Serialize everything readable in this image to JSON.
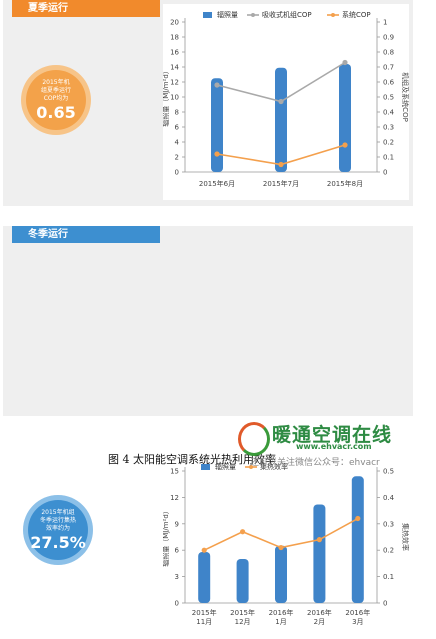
{
  "summer": {
    "tab": "夏季运行",
    "badge_lines": [
      "2015年机",
      "组夏季运行",
      "COP均为"
    ],
    "badge_value": "0.65"
  },
  "winter": {
    "tab": "冬季运行",
    "badge_lines": [
      "2015年机组",
      "冬季运行集热",
      "效率约为"
    ],
    "badge_value": "27.5%"
  },
  "caption": "图 4  太阳能空调系统光热利用效率",
  "watermark": {
    "name": "暖通空调在线",
    "url": "www.ehvacr.com",
    "sub": "还可以关注微信公众号：ehvacr"
  },
  "colors": {
    "bar": "#3f84c9",
    "gray_line": "#a9a9a9",
    "orange_line": "#f4a04d"
  },
  "chart_data": [
    {
      "type": "bar",
      "categories": [
        "2015年6月",
        "2015年7月",
        "2015年8月"
      ],
      "series": [
        {
          "name": "辐照量",
          "kind": "bar",
          "axis": "left",
          "values": [
            12.5,
            13.9,
            14.4
          ]
        },
        {
          "name": "吸收式机组COP",
          "kind": "line",
          "axis": "right",
          "values": [
            0.58,
            0.47,
            0.73
          ]
        },
        {
          "name": "系统COP",
          "kind": "line",
          "axis": "right",
          "values": [
            0.12,
            0.05,
            0.18
          ]
        }
      ],
      "ylabel_left": "辐照量（MJ/m²d）",
      "ylabel_right": "机组及系统COP",
      "ylim_left": [
        0,
        20
      ],
      "yticks_left": [
        "0",
        "2",
        "4",
        "6",
        "8",
        "10",
        "12",
        "14",
        "16",
        "18",
        "20"
      ],
      "ylim_right": [
        0,
        1
      ],
      "yticks_right": [
        "0",
        "0.1",
        "0.2",
        "0.3",
        "0.4",
        "0.5",
        "0.6",
        "0.7",
        "0.8",
        "0.9",
        "1"
      ],
      "legend": "top",
      "grid": false
    },
    {
      "type": "bar",
      "categories": [
        "2015年11月",
        "2015年12月",
        "2016年1月",
        "2016年2月",
        "2016年3月"
      ],
      "series": [
        {
          "name": "辐照量",
          "kind": "bar",
          "axis": "left",
          "values": [
            5.8,
            5.0,
            6.5,
            11.2,
            14.4
          ]
        },
        {
          "name": "集热效率",
          "kind": "line",
          "axis": "right",
          "values": [
            0.2,
            0.27,
            0.21,
            0.24,
            0.32
          ]
        }
      ],
      "ylabel_left": "辐照量（MJ/m²d）",
      "ylabel_right": "集热效率",
      "ylim_left": [
        0,
        15
      ],
      "yticks_left": [
        "0",
        "3",
        "6",
        "9",
        "12",
        "15"
      ],
      "ylim_right": [
        0,
        0.5
      ],
      "yticks_right": [
        "0",
        "0.1",
        "0.2",
        "0.3",
        "0.4",
        "0.5"
      ],
      "legend": "top",
      "grid": false
    }
  ]
}
